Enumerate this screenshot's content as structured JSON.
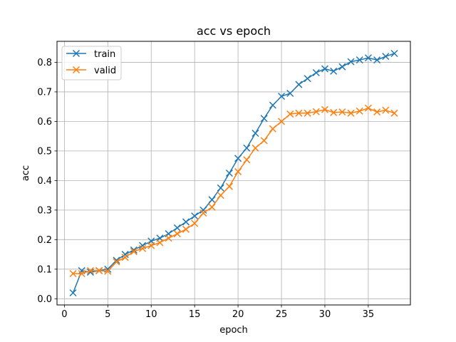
{
  "chart_data": {
    "type": "line",
    "title": "acc vs epoch",
    "xlabel": "epoch",
    "ylabel": "acc",
    "xlim": [
      -0.85,
      39.85
    ],
    "ylim": [
      -0.021,
      0.871
    ],
    "xticks": [
      0,
      5,
      10,
      15,
      20,
      25,
      30,
      35
    ],
    "yticks": [
      0.0,
      0.1,
      0.2,
      0.3,
      0.4,
      0.5,
      0.6,
      0.7,
      0.8
    ],
    "grid": true,
    "legend_position": "upper-left",
    "marker": "x",
    "x": [
      1,
      2,
      3,
      4,
      5,
      6,
      7,
      8,
      9,
      10,
      11,
      12,
      13,
      14,
      15,
      16,
      17,
      18,
      19,
      20,
      21,
      22,
      23,
      24,
      25,
      26,
      27,
      28,
      29,
      30,
      31,
      32,
      33,
      34,
      35,
      36,
      37,
      38
    ],
    "series": [
      {
        "name": "train",
        "color": "#1f77b4",
        "values": [
          0.02,
          0.095,
          0.09,
          0.095,
          0.1,
          0.13,
          0.15,
          0.165,
          0.18,
          0.195,
          0.205,
          0.22,
          0.24,
          0.26,
          0.28,
          0.3,
          0.335,
          0.375,
          0.425,
          0.475,
          0.51,
          0.56,
          0.61,
          0.655,
          0.685,
          0.695,
          0.725,
          0.745,
          0.765,
          0.778,
          0.77,
          0.785,
          0.802,
          0.808,
          0.815,
          0.808,
          0.82,
          0.83
        ]
      },
      {
        "name": "valid",
        "color": "#ff7f0e",
        "values": [
          0.085,
          0.085,
          0.095,
          0.095,
          0.093,
          0.125,
          0.14,
          0.16,
          0.17,
          0.18,
          0.19,
          0.205,
          0.22,
          0.235,
          0.255,
          0.29,
          0.31,
          0.35,
          0.38,
          0.43,
          0.47,
          0.51,
          0.535,
          0.575,
          0.6,
          0.625,
          0.628,
          0.628,
          0.633,
          0.64,
          0.63,
          0.632,
          0.628,
          0.635,
          0.645,
          0.632,
          0.638,
          0.628
        ]
      }
    ]
  }
}
